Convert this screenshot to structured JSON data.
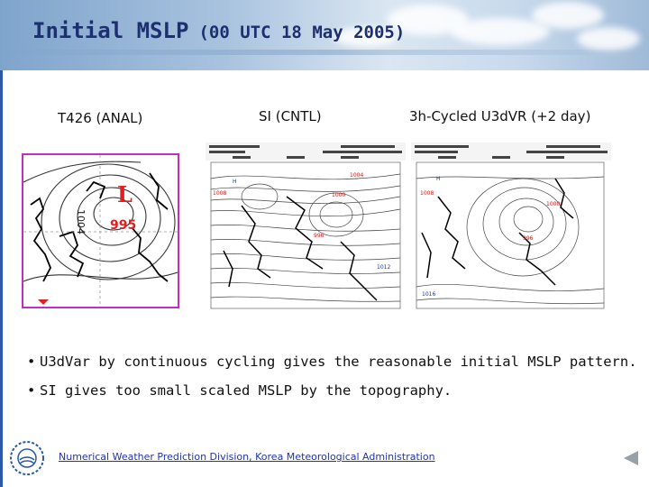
{
  "header": {
    "title_main": "Initial MSLP",
    "title_sub": "(00 UTC 18 May 2005)"
  },
  "panels": [
    {
      "label": "T426 (ANAL)",
      "low_center_value": "995",
      "isobar_value": "1004",
      "low_letter": "L"
    },
    {
      "label": "SI (CNTL)"
    },
    {
      "label": "3h-Cycled U3dVR (+2 day)"
    }
  ],
  "bullets": [
    "U3dVar by continuous cycling gives the reasonable initial MSLP pattern.",
    "SI gives too small scaled MSLP by the topography."
  ],
  "footer": {
    "link_text": "Numerical Weather Prediction Division, Korea Meteorological Administration"
  },
  "icons": {
    "logo": "kma-logo-icon",
    "nav": "previous-slide-icon"
  },
  "colors": {
    "title": "#1c2f6e",
    "accent_bar": "#2b58a8",
    "map_frame": "#c030c0",
    "low_marker": "#e02020",
    "link": "#2433a8"
  }
}
